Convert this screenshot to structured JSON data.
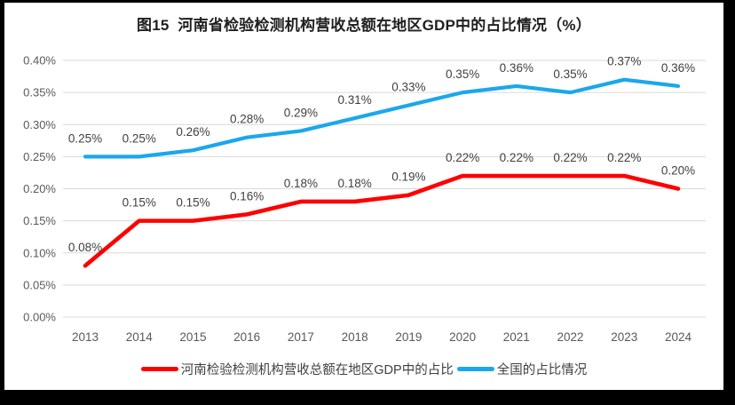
{
  "title": "图15  河南省检验检测机构营收总额在地区GDP中的占比情况（%）",
  "colors": {
    "henan_line": "#FF0000",
    "national_line": "#1BA7EC",
    "gridline": "#D9D9D9",
    "axis_text": "#595959",
    "data_label_text": "#404040",
    "title_text": "#1F1F1F",
    "frame_border": "#000000",
    "background": "#FFFFFF"
  },
  "chart_data": {
    "type": "line",
    "title": "图15  河南省检验检测机构营收总额在地区GDP中的占比情况（%）",
    "categories": [
      "2013",
      "2014",
      "2015",
      "2016",
      "2017",
      "2018",
      "2019",
      "2020",
      "2021",
      "2022",
      "2023",
      "2024"
    ],
    "y_axis": {
      "unit": "%",
      "min": 0.0,
      "max": 0.4,
      "step": 0.05,
      "tick_labels": [
        "0.00%",
        "0.05%",
        "0.10%",
        "0.15%",
        "0.20%",
        "0.25%",
        "0.30%",
        "0.35%",
        "0.40%"
      ]
    },
    "grid": "horizontal",
    "legend_position": "bottom",
    "series": [
      {
        "name": "河南检验检测机构营收总额在地区GDP中的占比",
        "color": "#FF0000",
        "values": [
          0.08,
          0.15,
          0.15,
          0.16,
          0.18,
          0.18,
          0.19,
          0.22,
          0.22,
          0.22,
          0.22,
          0.2
        ],
        "labels": [
          "0.08%",
          "0.15%",
          "0.15%",
          "0.16%",
          "0.18%",
          "0.18%",
          "0.19%",
          "0.22%",
          "0.22%",
          "0.22%",
          "0.22%",
          "0.20%"
        ]
      },
      {
        "name": "全国的占比情况",
        "color": "#1BA7EC",
        "values": [
          0.25,
          0.25,
          0.26,
          0.28,
          0.29,
          0.31,
          0.33,
          0.35,
          0.36,
          0.35,
          0.37,
          0.36
        ],
        "labels": [
          "0.25%",
          "0.25%",
          "0.26%",
          "0.28%",
          "0.29%",
          "0.31%",
          "0.33%",
          "0.35%",
          "0.36%",
          "0.35%",
          "0.37%",
          "0.36%"
        ]
      }
    ]
  }
}
